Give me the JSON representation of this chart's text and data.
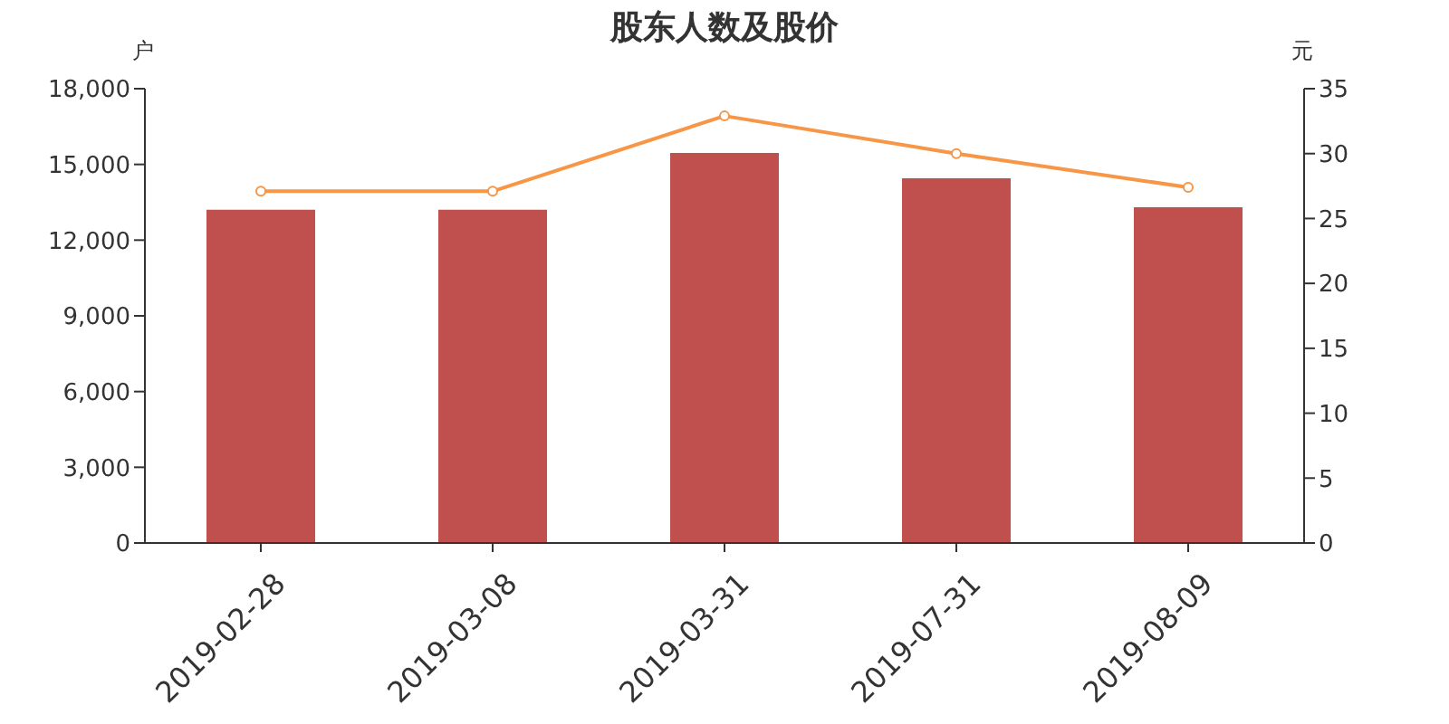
{
  "chart_data": {
    "type": "bar",
    "title": "股东人数及股价",
    "ylabel": "户",
    "y2label": "元",
    "categories": [
      "2019-02-28",
      "2019-03-08",
      "2019-03-31",
      "2019-07-31",
      "2019-08-09"
    ],
    "series": [
      {
        "color": "#c0504d",
        "values": [
          13200,
          13200,
          15450,
          14450,
          13300
        ]
      },
      {
        "type": "line",
        "axis": "y2",
        "color": "#f79646",
        "values": [
          27.1,
          27.1,
          32.9,
          30.0,
          27.4
        ]
      }
    ],
    "ylim": [
      0,
      18000
    ],
    "yticks": [
      {
        "value": 0,
        "label": "0"
      },
      {
        "value": 3000,
        "label": "3,000"
      },
      {
        "value": 6000,
        "label": "6,000"
      },
      {
        "value": 9000,
        "label": "9,000"
      },
      {
        "value": 12000,
        "label": "12,000"
      },
      {
        "value": 15000,
        "label": "15,000"
      },
      {
        "value": 18000,
        "label": "18,000"
      }
    ],
    "y2lim": [
      0,
      35
    ],
    "y2ticks": [
      0,
      5,
      10,
      15,
      20,
      25,
      30,
      35
    ],
    "grid": false,
    "legend": false,
    "marker": "circle",
    "line_style": "solid"
  }
}
